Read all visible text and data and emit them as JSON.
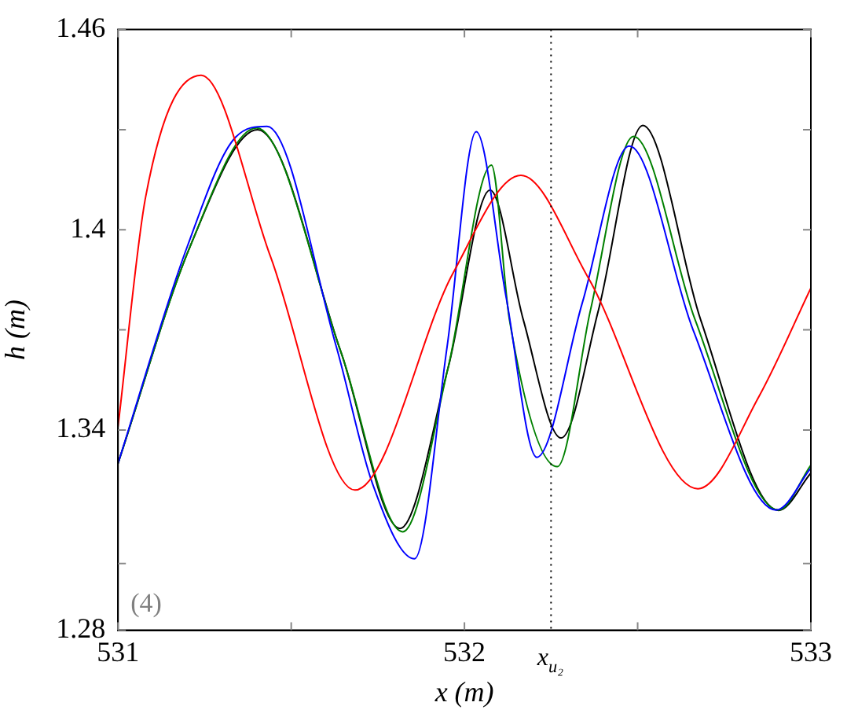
{
  "chart_data": {
    "type": "line",
    "xlabel": "x (m)",
    "ylabel": "h (m)",
    "xlim": [
      531,
      533
    ],
    "ylim": [
      1.28,
      1.46
    ],
    "xticks": [
      531,
      {
        "value": 531.5,
        "label": null
      },
      532,
      {
        "value": 532.5,
        "label": null
      },
      533
    ],
    "yticks": [
      1.28,
      {
        "value": 1.3,
        "label": null
      },
      1.34,
      {
        "value": 1.37,
        "label": null
      },
      1.4,
      {
        "value": 1.43,
        "label": null
      },
      1.46
    ],
    "grid": false,
    "legend": false,
    "marker": "none",
    "line_style": "solid",
    "ref_lines": [
      {
        "axis": "x",
        "value": 532.25,
        "label": "x$_{u₂}$",
        "line_style": "dotted",
        "color": "#000000"
      }
    ],
    "annotations": [
      "(4)"
    ],
    "series": [
      {
        "color": "#ff0000",
        "x": [
          531,
          531.08,
          531.24,
          531.44,
          531.684,
          531.967,
          532.163,
          532.357,
          532.674,
          532.85,
          533
        ],
        "values": [
          1.341,
          1.41,
          1.4463,
          1.392,
          1.322,
          1.387,
          1.4163,
          1.3857,
          1.3224,
          1.35,
          1.3825
        ]
      },
      {
        "color": "#0000ff",
        "x": [
          531,
          531.2,
          531.34,
          531.43,
          531.63,
          531.735,
          531.856,
          531.95,
          532.034,
          532.12,
          532.209,
          532.34,
          532.476,
          532.66,
          532.9,
          533
        ],
        "values": [
          1.33,
          1.395,
          1.4278,
          1.431,
          1.365,
          1.3238,
          1.3014,
          1.365,
          1.4294,
          1.38,
          1.3318,
          1.378,
          1.4251,
          1.37,
          1.316,
          1.3286
        ]
      },
      {
        "color": "#008000",
        "x": [
          531,
          531.209,
          531.4,
          531.643,
          531.822,
          531.953,
          532.078,
          532.13,
          532.268,
          532.364,
          532.488,
          532.666,
          532.907,
          533
        ],
        "values": [
          1.33,
          1.3952,
          1.4305,
          1.3635,
          1.3095,
          1.3587,
          1.4194,
          1.373,
          1.329,
          1.376,
          1.428,
          1.373,
          1.316,
          1.3295
        ]
      },
      {
        "color": "#000000",
        "x": [
          531,
          531.209,
          531.403,
          531.643,
          531.814,
          531.953,
          532.074,
          532.17,
          532.279,
          532.387,
          532.515,
          532.682,
          532.907,
          533
        ],
        "values": [
          1.33,
          1.3952,
          1.43,
          1.3635,
          1.3105,
          1.3587,
          1.4119,
          1.373,
          1.3376,
          1.376,
          1.4313,
          1.373,
          1.3159,
          1.3271
        ]
      }
    ]
  }
}
